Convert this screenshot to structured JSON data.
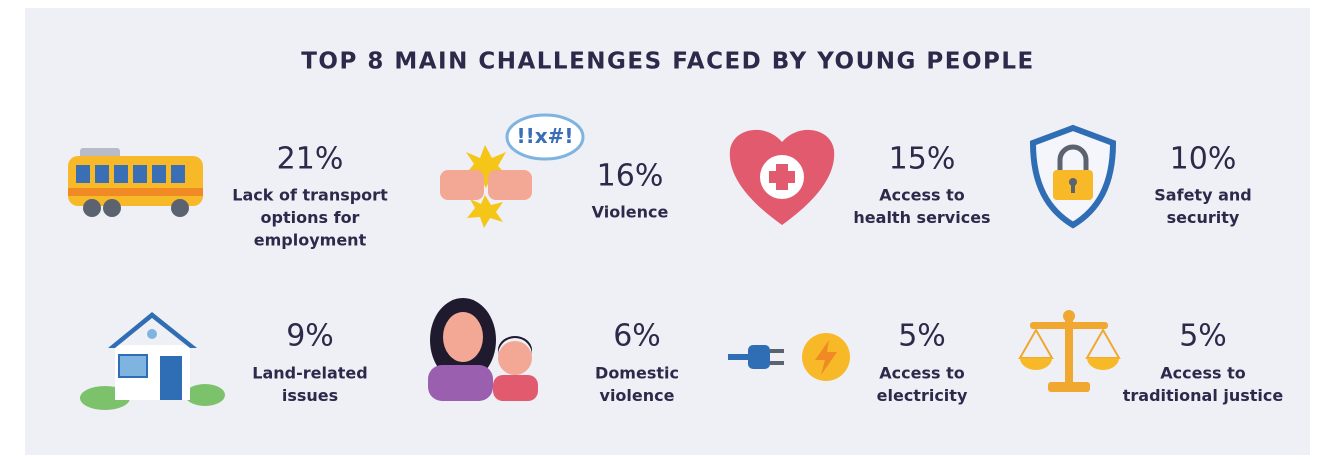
{
  "title": "TOP 8 MAIN CHALLENGES FACED BY YOUNG PEOPLE",
  "items": [
    {
      "value": "21%",
      "label": [
        "Lack of transport",
        "options for",
        "employment"
      ]
    },
    {
      "value": "16%",
      "label": [
        "Violence"
      ]
    },
    {
      "value": "15%",
      "label": [
        "Access to",
        "health services"
      ]
    },
    {
      "value": "10%",
      "label": [
        "Safety and",
        "security"
      ]
    },
    {
      "value": "9%",
      "label": [
        "Land-related",
        "issues"
      ]
    },
    {
      "value": "6%",
      "label": [
        "Domestic",
        "violence"
      ]
    },
    {
      "value": "5%",
      "label": [
        "Access to",
        "electricity"
      ]
    },
    {
      "value": "5%",
      "label": [
        "Access to",
        "traditional justice"
      ]
    }
  ]
}
